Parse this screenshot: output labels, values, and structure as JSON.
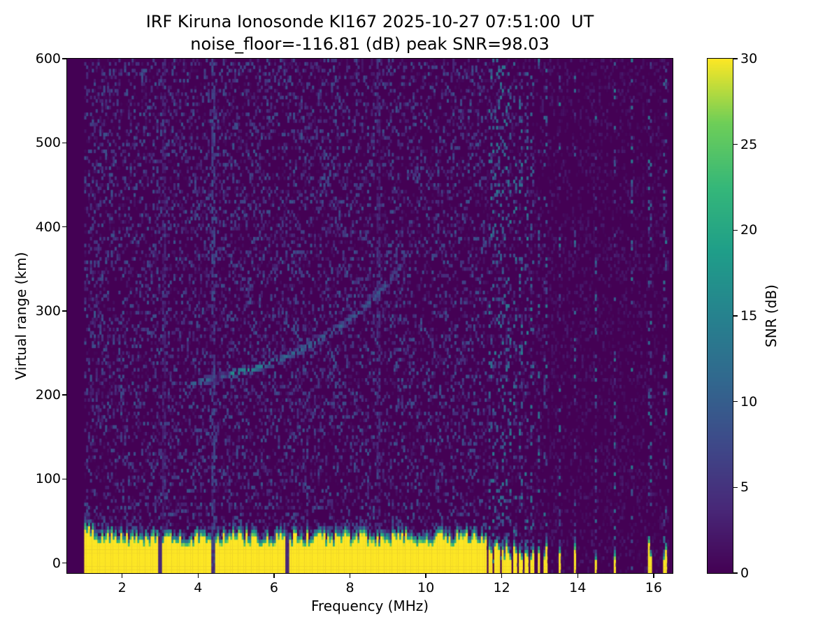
{
  "chart_data": {
    "type": "heatmap",
    "title": "IRF Kiruna Ionosonde KI167 2025-10-27 07:51:00  UT",
    "subtitle": "noise_floor=-116.81 (dB) peak SNR=98.03",
    "station_code": "KI167",
    "timestamp_ut": "2025-10-27 07:51:00",
    "noise_floor_db": -116.81,
    "peak_snr_db": 98.03,
    "xlabel": "Frequency (MHz)",
    "ylabel": "Virtual range (km)",
    "colorbar_label": "SNR (dB)",
    "x_range": [
      0.55,
      16.5
    ],
    "y_range": [
      -12,
      600
    ],
    "color_range": [
      0,
      30
    ],
    "x_ticks": [
      2,
      4,
      6,
      8,
      10,
      12,
      14,
      16
    ],
    "y_ticks": [
      0,
      100,
      200,
      300,
      400,
      500,
      600
    ],
    "colorbar_ticks": [
      0,
      5,
      10,
      15,
      20,
      25,
      30
    ],
    "colormap": "viridis",
    "viridis_anchors": [
      [
        0,
        "#440154"
      ],
      [
        0.125,
        "#482878"
      ],
      [
        0.25,
        "#3e4989"
      ],
      [
        0.375,
        "#31688e"
      ],
      [
        0.5,
        "#26828e"
      ],
      [
        0.625,
        "#1f9e89"
      ],
      [
        0.75,
        "#35b779"
      ],
      [
        0.875,
        "#6ece58"
      ],
      [
        1,
        "#fde725"
      ]
    ],
    "grid": false,
    "features": {
      "noise_seed": 167,
      "data_freq_range": [
        1.0,
        16.38
      ],
      "ground_clutter": {
        "freq_start": 1.0,
        "freq_end": 11.6,
        "top_km_min": 26,
        "top_km_max": 44,
        "peak_snr": 30,
        "notch_freqs": [
          2.95,
          4.38,
          6.3
        ]
      },
      "sparse_echo_columns_mhz": [
        11.68,
        11.77,
        11.86,
        11.96,
        12.07,
        12.19,
        12.32,
        12.46,
        12.61,
        12.77,
        12.95,
        13.14,
        13.5,
        13.9,
        14.45,
        14.95,
        15.4,
        15.87,
        16.27
      ],
      "interference_columns": [
        {
          "freq": 3.05,
          "snr": 3
        },
        {
          "freq": 4.38,
          "snr": 6
        },
        {
          "freq": 8.72,
          "snr": 3.5
        }
      ],
      "ionospheric_echo_trace": {
        "points": [
          [
            3.75,
            212,
            9
          ],
          [
            4.0,
            215,
            11
          ],
          [
            4.25,
            218,
            11
          ],
          [
            4.5,
            221,
            0.5
          ],
          [
            4.7,
            224,
            12
          ],
          [
            4.9,
            226,
            16
          ],
          [
            5.2,
            229,
            17
          ],
          [
            5.5,
            232,
            15
          ],
          [
            5.8,
            237,
            12
          ],
          [
            6.2,
            244,
            11
          ],
          [
            6.6,
            252,
            11
          ],
          [
            7.0,
            261,
            11
          ],
          [
            7.4,
            272,
            10
          ],
          [
            7.8,
            284,
            10
          ],
          [
            8.2,
            298,
            9
          ],
          [
            8.6,
            315,
            9
          ],
          [
            9.0,
            335,
            8
          ],
          [
            9.25,
            350,
            6
          ],
          [
            9.5,
            368,
            4
          ]
        ]
      }
    }
  }
}
